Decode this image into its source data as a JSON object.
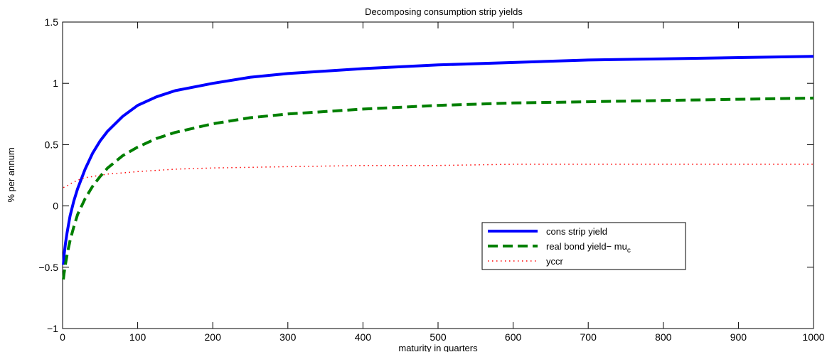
{
  "chart_data": {
    "type": "line",
    "title": "Decomposing consumption strip yields",
    "xlabel": "maturity in quarters",
    "ylabel": "% per annum",
    "xlim": [
      0,
      1000
    ],
    "ylim": [
      -1,
      1.5
    ],
    "xticks": [
      0,
      100,
      200,
      300,
      400,
      500,
      600,
      700,
      800,
      900,
      1000
    ],
    "yticks": [
      -1,
      -0.5,
      0,
      0.5,
      1,
      1.5
    ],
    "xtick_labels": [
      "0",
      "100",
      "200",
      "300",
      "400",
      "500",
      "600",
      "700",
      "800",
      "900",
      "1000"
    ],
    "ytick_labels": [
      "−1",
      "−0.5",
      "0",
      "0.5",
      "1",
      "1.5"
    ],
    "grid": false,
    "legend_position": "center-right",
    "series": [
      {
        "name": "cons strip yield",
        "color": "#0000ff",
        "style": "solid",
        "x": [
          1,
          2,
          4,
          6,
          8,
          10,
          15,
          20,
          30,
          40,
          50,
          60,
          80,
          100,
          125,
          150,
          200,
          250,
          300,
          400,
          500,
          600,
          700,
          800,
          900,
          1000
        ],
        "y": [
          -0.48,
          -0.4,
          -0.3,
          -0.22,
          -0.15,
          -0.08,
          0.04,
          0.14,
          0.3,
          0.43,
          0.53,
          0.61,
          0.73,
          0.82,
          0.89,
          0.94,
          1.0,
          1.05,
          1.08,
          1.12,
          1.15,
          1.17,
          1.19,
          1.2,
          1.21,
          1.22
        ]
      },
      {
        "name": "real bond yield− mu",
        "name_subscript": "c",
        "color": "#007f00",
        "style": "dashed",
        "x": [
          1,
          2,
          4,
          6,
          8,
          10,
          15,
          20,
          30,
          40,
          50,
          60,
          80,
          100,
          125,
          150,
          200,
          250,
          300,
          400,
          500,
          600,
          700,
          800,
          900,
          1000
        ],
        "y": [
          -0.6,
          -0.55,
          -0.47,
          -0.4,
          -0.34,
          -0.28,
          -0.17,
          -0.07,
          0.06,
          0.16,
          0.24,
          0.31,
          0.41,
          0.48,
          0.55,
          0.6,
          0.67,
          0.72,
          0.75,
          0.79,
          0.82,
          0.84,
          0.85,
          0.86,
          0.87,
          0.88
        ]
      },
      {
        "name": "yccr",
        "color": "#ff0000",
        "style": "dotted",
        "x": [
          1,
          5,
          10,
          20,
          30,
          40,
          50,
          60,
          80,
          100,
          150,
          200,
          300,
          400,
          500,
          600,
          700,
          800,
          900,
          1000
        ],
        "y": [
          0.15,
          0.16,
          0.18,
          0.21,
          0.23,
          0.24,
          0.25,
          0.26,
          0.27,
          0.28,
          0.3,
          0.31,
          0.32,
          0.33,
          0.33,
          0.34,
          0.34,
          0.34,
          0.34,
          0.34
        ]
      }
    ]
  }
}
